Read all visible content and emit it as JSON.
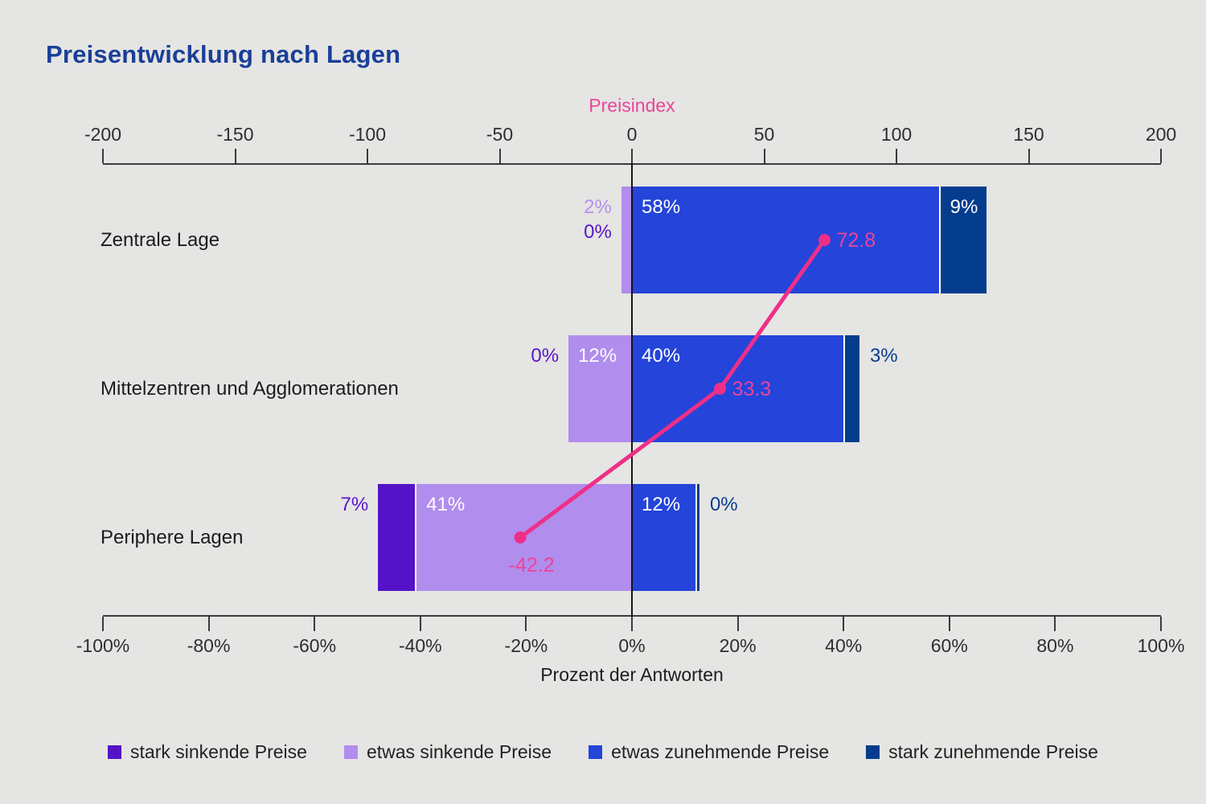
{
  "title": "Preisentwicklung nach Lagen",
  "colors": {
    "background": "#e5e5e3",
    "title": "#1a3f98",
    "axis_line": "#3b3b3b",
    "axis_text": "#2e2e2e",
    "zero_line": "#141414",
    "pink_line": "#ee2f88",
    "pink_text": "#e9459a",
    "stark_sinkende": "#5413c7",
    "etwas_sinkende": "#b18dee",
    "etwas_zunehmende": "#2444da",
    "stark_zunehmende": "#043d8d",
    "label_dark_purple": "#5a14c9",
    "label_light_purple": "#b48ff0",
    "label_navy": "#0b3d8f",
    "label_inside": "#ffffff"
  },
  "top_axis": {
    "label": "Preisindex",
    "range": [
      -200,
      200
    ],
    "ticks": [
      {
        "v": -200,
        "t": "-200"
      },
      {
        "v": -150,
        "t": "-150"
      },
      {
        "v": -100,
        "t": "-100"
      },
      {
        "v": -50,
        "t": "-50"
      },
      {
        "v": 0,
        "t": "0"
      },
      {
        "v": 50,
        "t": "50"
      },
      {
        "v": 100,
        "t": "100"
      },
      {
        "v": 150,
        "t": "150"
      },
      {
        "v": 200,
        "t": "200"
      }
    ]
  },
  "bottom_axis": {
    "label": "Prozent der Antworten",
    "range": [
      -100,
      100
    ],
    "ticks": [
      {
        "v": -100,
        "t": "-100%"
      },
      {
        "v": -80,
        "t": "-80%"
      },
      {
        "v": -60,
        "t": "-60%"
      },
      {
        "v": -40,
        "t": "-40%"
      },
      {
        "v": -20,
        "t": "-20%"
      },
      {
        "v": 0,
        "t": "0%"
      },
      {
        "v": 20,
        "t": "20%"
      },
      {
        "v": 40,
        "t": "40%"
      },
      {
        "v": 60,
        "t": "60%"
      },
      {
        "v": 80,
        "t": "80%"
      },
      {
        "v": 100,
        "t": "100%"
      }
    ]
  },
  "chart_data": {
    "type": "bar",
    "variant": "diverging_stacked_horizontal_with_line",
    "title": "Preisentwicklung nach Lagen",
    "xlabel_bottom": "Prozent der Antworten",
    "xlabel_top": "Preisindex",
    "x_bottom_range": [
      -100,
      100
    ],
    "x_top_range": [
      -200,
      200
    ],
    "categories": [
      "Zentrale Lage",
      "Mittelzentren und Agglomerationen",
      "Periphere Lagen"
    ],
    "series": [
      {
        "name": "stark sinkende Preise",
        "side": "negative",
        "color_key": "stark_sinkende",
        "label_color_key": "label_dark_purple",
        "values": [
          0,
          0,
          7
        ],
        "labels": [
          "0%",
          "0%",
          "7%"
        ]
      },
      {
        "name": "etwas sinkende Preise",
        "side": "negative",
        "color_key": "etwas_sinkende",
        "label_color_key": "label_light_purple",
        "values": [
          2,
          12,
          41
        ],
        "labels": [
          "2%",
          "12%",
          "41%"
        ]
      },
      {
        "name": "etwas zunehmende Preise",
        "side": "positive",
        "color_key": "etwas_zunehmende",
        "label_color_key": "label_navy",
        "values": [
          58,
          40,
          12
        ],
        "labels": [
          "58%",
          "40%",
          "12%"
        ]
      },
      {
        "name": "stark zunehmende Preise",
        "side": "positive",
        "color_key": "stark_zunehmende",
        "label_color_key": "label_navy",
        "values": [
          9,
          3,
          0
        ],
        "labels": [
          "9%",
          "3%",
          "0%"
        ]
      }
    ],
    "zero_slivers": [
      {
        "series": 3,
        "category": 2,
        "width": 3
      }
    ],
    "line_series": {
      "name": "Preisindex",
      "axis": "top",
      "values": [
        72.8,
        33.3,
        -42.2
      ],
      "labels": [
        "72.8",
        "33.3",
        "-42.2"
      ]
    }
  },
  "legend": {
    "items": [
      {
        "label": "stark sinkende Preise",
        "color_key": "stark_sinkende"
      },
      {
        "label": "etwas sinkende Preise",
        "color_key": "etwas_sinkende"
      },
      {
        "label": "etwas zunehmende Preise",
        "color_key": "etwas_zunehmende"
      },
      {
        "label": "stark zunehmende Preise",
        "color_key": "stark_zunehmende"
      }
    ]
  }
}
